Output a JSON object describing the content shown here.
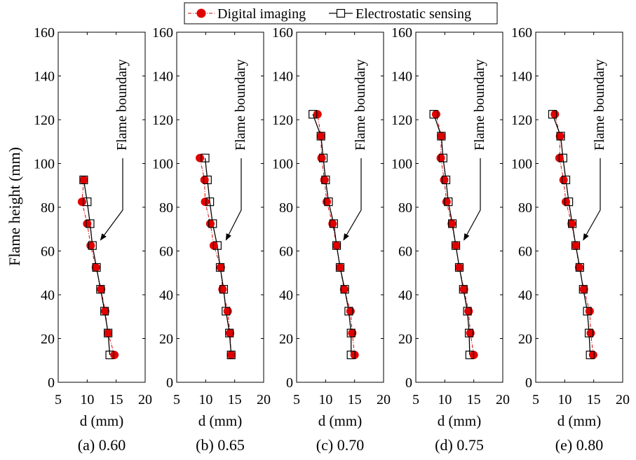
{
  "legend": {
    "items": [
      {
        "label": "Digital imaging",
        "marker": "filled-circle",
        "line": "dash-dot",
        "color": "#e00000"
      },
      {
        "label": "Electrostatic sensing",
        "marker": "open-square",
        "line": "solid",
        "color": "#000000"
      }
    ],
    "placement": "top-center"
  },
  "ylabel": "Flame height (mm)",
  "xlabel": "d (mm)",
  "annotation": "Flame boundary",
  "colors": {
    "digital": "#e00000",
    "electrostatic": "#000000"
  },
  "chart_data": [
    {
      "type": "line",
      "caption": "(a) 0.60",
      "xlabel": "d (mm)",
      "ylabel": "Flame height (mm)",
      "xlim": [
        5,
        20
      ],
      "ylim": [
        0,
        160
      ],
      "xticks": [
        5,
        10,
        15,
        20
      ],
      "yticks": [
        0,
        20,
        40,
        60,
        80,
        100,
        120,
        140,
        160
      ],
      "grid": false,
      "series": [
        {
          "name": "Digital imaging",
          "points": [
            [
              14.7,
              12.5
            ],
            [
              13.6,
              22.5
            ],
            [
              13.1,
              32.5
            ],
            [
              12.4,
              42.5
            ],
            [
              11.5,
              52.5
            ],
            [
              10.6,
              62.5
            ],
            [
              10.0,
              72.5
            ],
            [
              9.1,
              82.5
            ],
            [
              9.4,
              92.5
            ]
          ]
        },
        {
          "name": "Electrostatic sensing",
          "points": [
            [
              13.9,
              12.5
            ],
            [
              13.6,
              22.5
            ],
            [
              13.0,
              32.5
            ],
            [
              12.3,
              42.5
            ],
            [
              11.6,
              52.5
            ],
            [
              10.9,
              62.5
            ],
            [
              10.5,
              72.5
            ],
            [
              10.0,
              82.5
            ],
            [
              9.4,
              92.5
            ]
          ]
        }
      ],
      "annotation": {
        "text": "Flame boundary",
        "arrow_to": [
          12.3,
          65
        ]
      }
    },
    {
      "type": "line",
      "caption": "(b) 0.65",
      "xlabel": "d (mm)",
      "ylabel": "",
      "xlim": [
        5,
        20
      ],
      "ylim": [
        0,
        160
      ],
      "xticks": [
        5,
        10,
        15,
        20
      ],
      "yticks": [
        0,
        20,
        40,
        60,
        80,
        100,
        120,
        140,
        160
      ],
      "grid": false,
      "series": [
        {
          "name": "Digital imaging",
          "points": [
            [
              14.4,
              12.5
            ],
            [
              14.2,
              22.5
            ],
            [
              13.8,
              32.5
            ],
            [
              12.9,
              42.5
            ],
            [
              12.6,
              52.5
            ],
            [
              11.4,
              62.5
            ],
            [
              10.8,
              72.5
            ],
            [
              9.9,
              82.5
            ],
            [
              9.8,
              92.5
            ],
            [
              9.0,
              102.5
            ]
          ]
        },
        {
          "name": "Electrostatic sensing",
          "points": [
            [
              14.4,
              12.5
            ],
            [
              14.1,
              22.5
            ],
            [
              13.5,
              32.5
            ],
            [
              13.1,
              42.5
            ],
            [
              12.5,
              52.5
            ],
            [
              12.0,
              62.5
            ],
            [
              11.2,
              72.5
            ],
            [
              10.7,
              82.5
            ],
            [
              10.3,
              92.5
            ],
            [
              9.9,
              102.5
            ]
          ]
        }
      ],
      "annotation": {
        "text": "Flame boundary",
        "arrow_to": [
          13.5,
          65
        ]
      }
    },
    {
      "type": "line",
      "caption": "(c) 0.70",
      "xlabel": "d (mm)",
      "ylabel": "",
      "xlim": [
        5,
        20
      ],
      "ylim": [
        0,
        160
      ],
      "xticks": [
        5,
        10,
        15,
        20
      ],
      "yticks": [
        0,
        20,
        40,
        60,
        80,
        100,
        120,
        140,
        160
      ],
      "grid": false,
      "series": [
        {
          "name": "Digital imaging",
          "points": [
            [
              15.0,
              12.5
            ],
            [
              14.6,
              22.5
            ],
            [
              14.3,
              32.5
            ],
            [
              13.2,
              42.5
            ],
            [
              12.5,
              52.5
            ],
            [
              11.9,
              62.5
            ],
            [
              11.2,
              72.5
            ],
            [
              10.2,
              82.5
            ],
            [
              9.8,
              92.5
            ],
            [
              9.3,
              102.5
            ],
            [
              9.2,
              112.5
            ],
            [
              8.6,
              122.5
            ]
          ]
        },
        {
          "name": "Electrostatic sensing",
          "points": [
            [
              14.4,
              12.5
            ],
            [
              14.4,
              22.5
            ],
            [
              14.0,
              32.5
            ],
            [
              13.3,
              42.5
            ],
            [
              12.5,
              52.5
            ],
            [
              11.9,
              62.5
            ],
            [
              11.4,
              72.5
            ],
            [
              10.5,
              82.5
            ],
            [
              10.0,
              92.5
            ],
            [
              9.6,
              102.5
            ],
            [
              9.2,
              112.5
            ],
            [
              7.8,
              122.5
            ]
          ]
        }
      ],
      "annotation": {
        "text": "Flame boundary",
        "arrow_to": [
          13.1,
          65
        ]
      }
    },
    {
      "type": "line",
      "caption": "(d) 0.75",
      "xlabel": "d (mm)",
      "ylabel": "",
      "xlim": [
        5,
        20
      ],
      "ylim": [
        0,
        160
      ],
      "xticks": [
        5,
        10,
        15,
        20
      ],
      "yticks": [
        0,
        20,
        40,
        60,
        80,
        100,
        120,
        140,
        160
      ],
      "grid": false,
      "series": [
        {
          "name": "Digital imaging",
          "points": [
            [
              15.0,
              12.5
            ],
            [
              14.4,
              22.5
            ],
            [
              14.1,
              32.5
            ],
            [
              13.3,
              42.5
            ],
            [
              12.5,
              52.5
            ],
            [
              11.9,
              62.5
            ],
            [
              11.2,
              72.5
            ],
            [
              10.3,
              82.5
            ],
            [
              9.9,
              92.5
            ],
            [
              9.3,
              102.5
            ],
            [
              9.4,
              112.5
            ],
            [
              8.5,
              122.5
            ]
          ]
        },
        {
          "name": "Electrostatic sensing",
          "points": [
            [
              14.3,
              12.5
            ],
            [
              14.2,
              22.5
            ],
            [
              13.9,
              32.5
            ],
            [
              13.2,
              42.5
            ],
            [
              12.5,
              52.5
            ],
            [
              11.9,
              62.5
            ],
            [
              11.3,
              72.5
            ],
            [
              10.6,
              82.5
            ],
            [
              10.2,
              92.5
            ],
            [
              9.7,
              102.5
            ],
            [
              9.4,
              112.5
            ],
            [
              8.1,
              122.5
            ]
          ]
        }
      ],
      "annotation": {
        "text": "Flame boundary",
        "arrow_to": [
          13.3,
          65
        ]
      }
    },
    {
      "type": "line",
      "caption": "(e) 0.80",
      "xlabel": "d (mm)",
      "ylabel": "",
      "xlim": [
        5,
        20
      ],
      "ylim": [
        0,
        160
      ],
      "xticks": [
        5,
        10,
        15,
        20
      ],
      "yticks": [
        0,
        20,
        40,
        60,
        80,
        100,
        120,
        140,
        160
      ],
      "grid": false,
      "series": [
        {
          "name": "Digital imaging",
          "points": [
            [
              14.9,
              12.5
            ],
            [
              14.5,
              22.5
            ],
            [
              14.3,
              32.5
            ],
            [
              13.3,
              42.5
            ],
            [
              12.5,
              52.5
            ],
            [
              11.9,
              62.5
            ],
            [
              11.2,
              72.5
            ],
            [
              10.2,
              82.5
            ],
            [
              9.8,
              92.5
            ],
            [
              9.1,
              102.5
            ],
            [
              9.2,
              112.5
            ],
            [
              8.3,
              122.5
            ]
          ]
        },
        {
          "name": "Electrostatic sensing",
          "points": [
            [
              14.4,
              12.5
            ],
            [
              14.2,
              22.5
            ],
            [
              13.9,
              32.5
            ],
            [
              13.2,
              42.5
            ],
            [
              12.6,
              52.5
            ],
            [
              11.9,
              62.5
            ],
            [
              11.3,
              72.5
            ],
            [
              10.7,
              82.5
            ],
            [
              10.2,
              92.5
            ],
            [
              9.7,
              102.5
            ],
            [
              9.3,
              112.5
            ],
            [
              7.9,
              122.5
            ]
          ]
        }
      ],
      "annotation": {
        "text": "Flame boundary",
        "arrow_to": [
          13.2,
          65
        ]
      }
    }
  ]
}
